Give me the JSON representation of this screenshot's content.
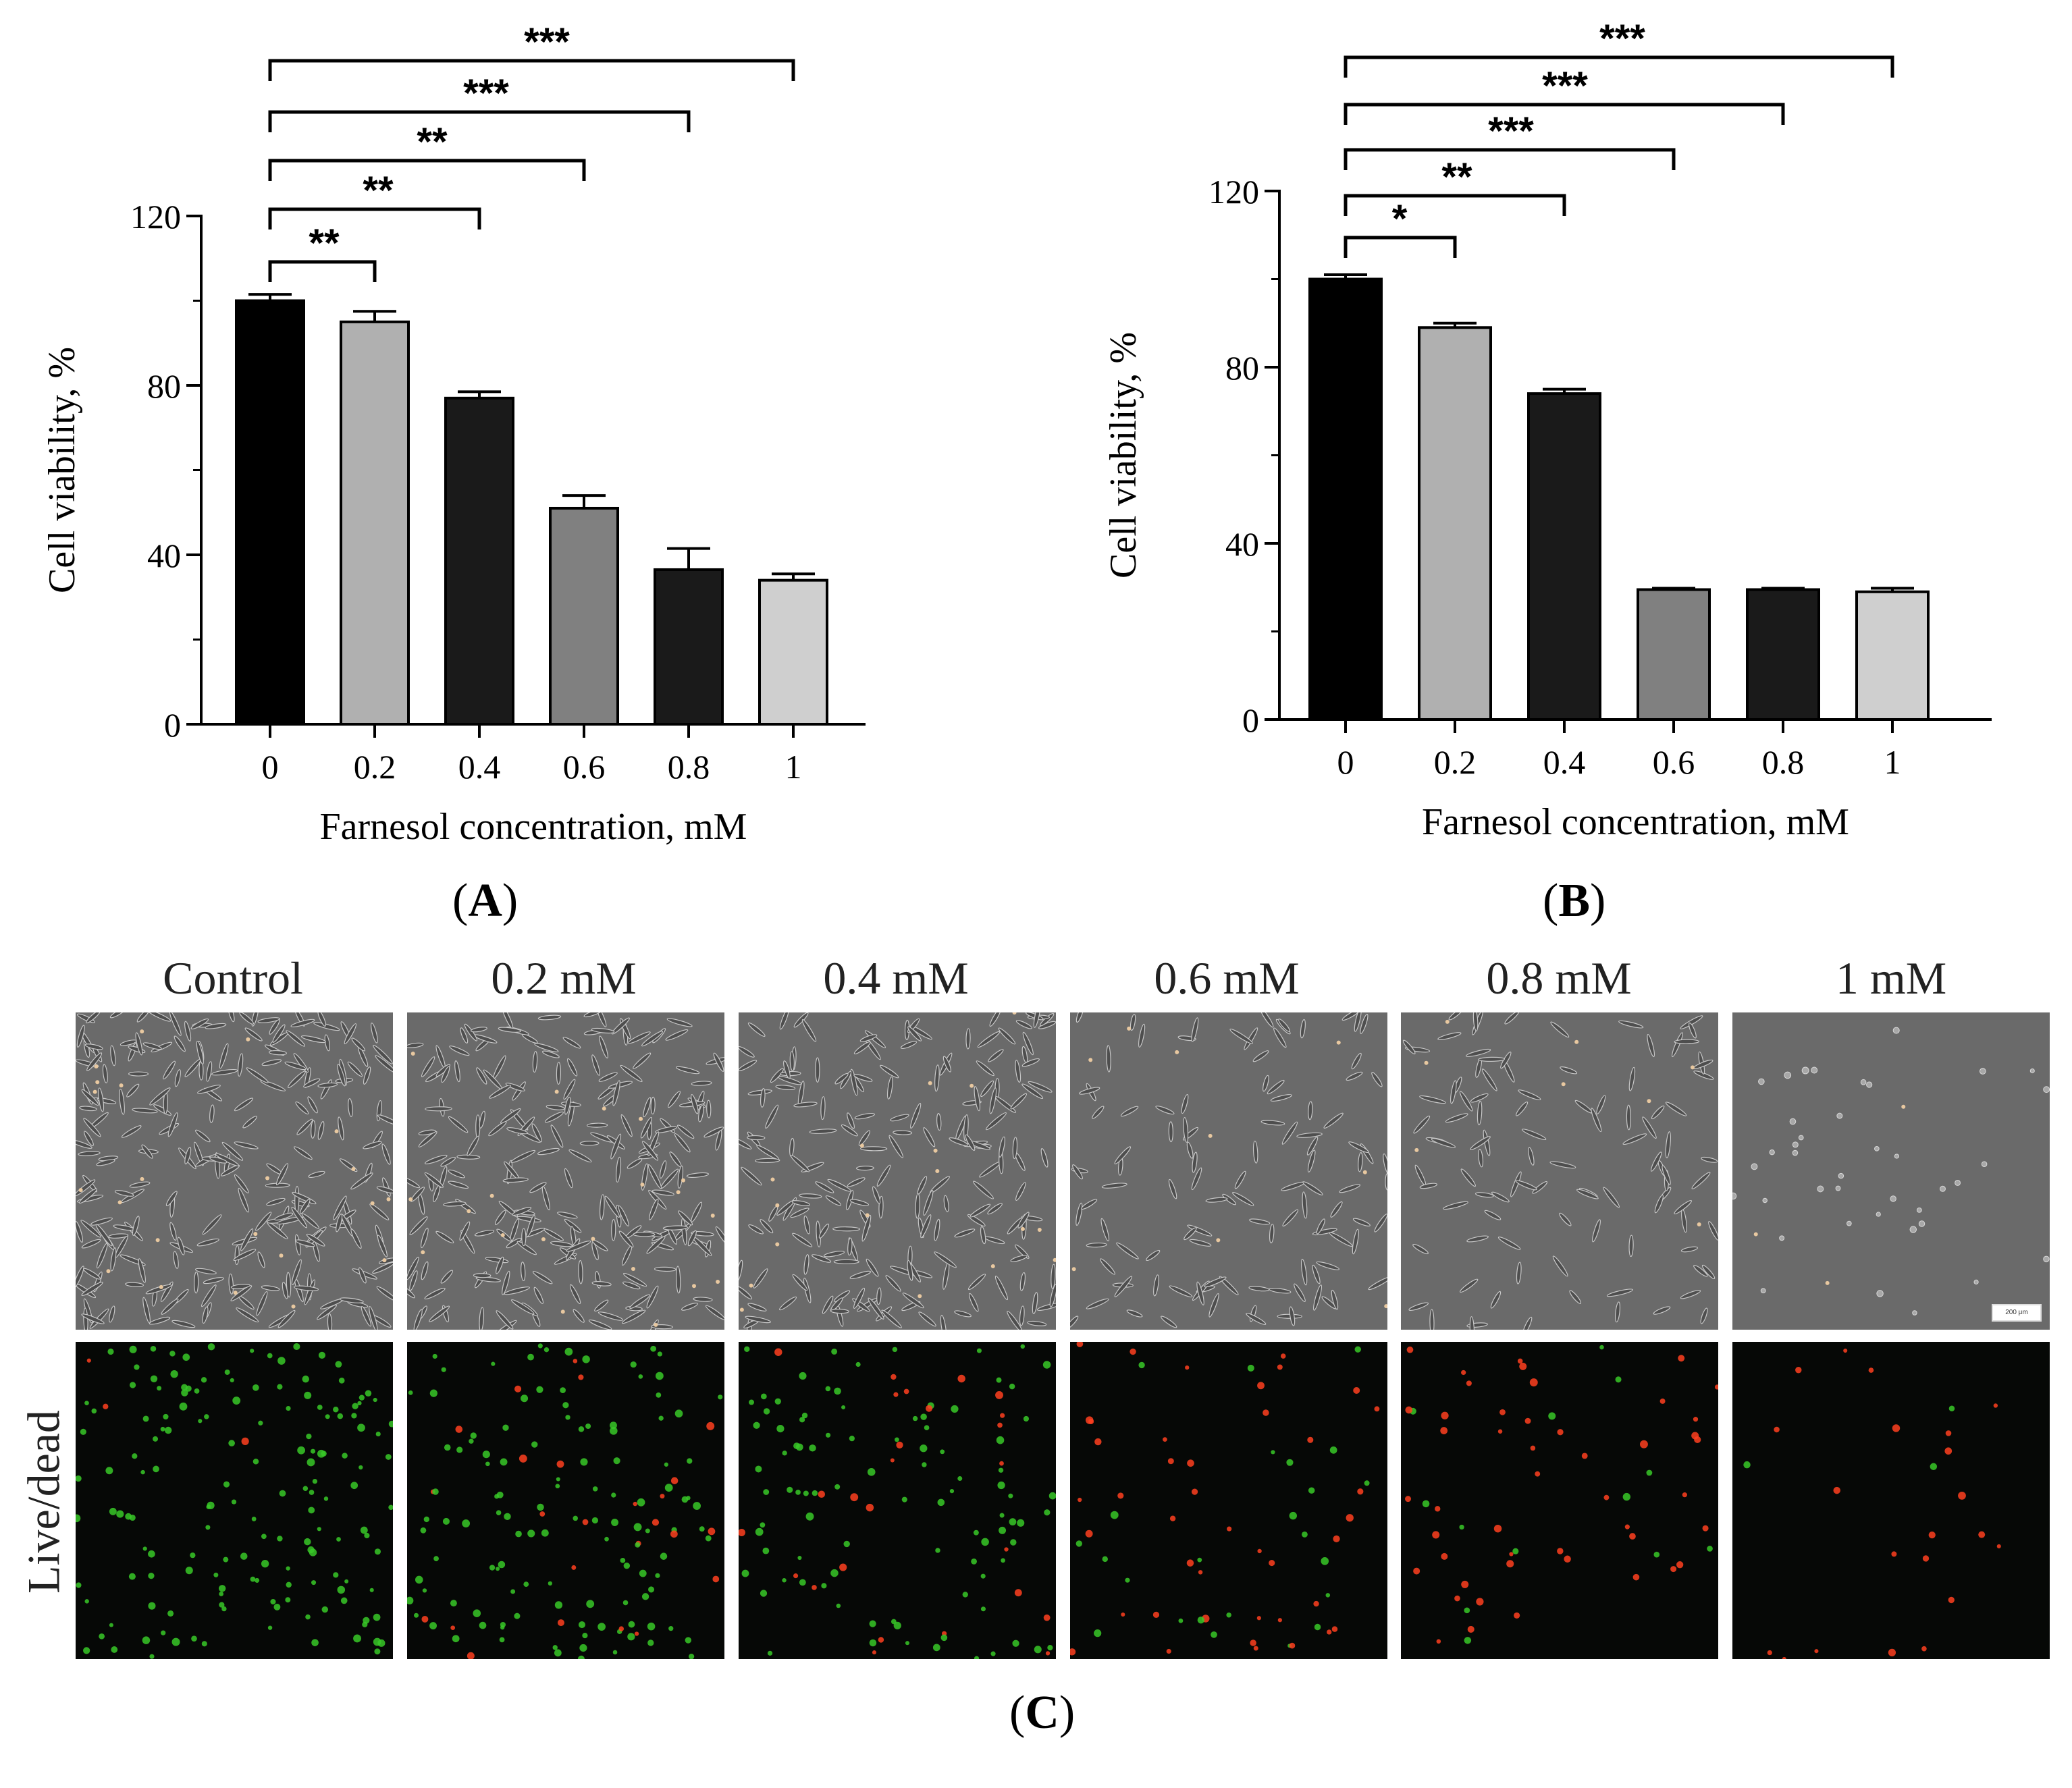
{
  "chart_data": [
    {
      "type": "bar",
      "panel": "A",
      "categories": [
        "0",
        "0.2",
        "0.4",
        "0.6",
        "0.8",
        "1"
      ],
      "values": [
        100,
        95,
        77,
        51,
        36.5,
        34
      ],
      "errors": [
        1.5,
        2.5,
        1.5,
        3,
        5,
        1.5
      ],
      "bar_colors": [
        "#000000",
        "#b0b0b0",
        "#1a1a1a",
        "#808080",
        "#1a1a1a",
        "#cfcfcf"
      ],
      "xlabel": "Farnesol concentration, mM",
      "ylabel": "Cell viability, %",
      "ylim": [
        0,
        120
      ],
      "yticks": [
        "0",
        "40",
        "80",
        "120"
      ],
      "significance": [
        {
          "to": "0.2",
          "label": "**"
        },
        {
          "to": "0.4",
          "label": "**"
        },
        {
          "to": "0.6",
          "label": "**"
        },
        {
          "to": "0.8",
          "label": "***"
        },
        {
          "to": "1",
          "label": "***"
        }
      ]
    },
    {
      "type": "bar",
      "panel": "B",
      "categories": [
        "0",
        "0.2",
        "0.4",
        "0.6",
        "0.8",
        "1"
      ],
      "values": [
        100,
        89,
        74,
        29.5,
        29.5,
        29
      ],
      "errors": [
        1,
        1,
        1,
        0.3,
        0.3,
        0.8
      ],
      "bar_colors": [
        "#000000",
        "#b0b0b0",
        "#1a1a1a",
        "#808080",
        "#1a1a1a",
        "#cfcfcf"
      ],
      "xlabel": "Farnesol concentration, mM",
      "ylabel": "Cell viability, %",
      "ylim": [
        0,
        120
      ],
      "yticks": [
        "0",
        "40",
        "80",
        "120"
      ],
      "significance": [
        {
          "to": "0.2",
          "label": "*"
        },
        {
          "to": "0.4",
          "label": "**"
        },
        {
          "to": "0.6",
          "label": "***"
        },
        {
          "to": "0.8",
          "label": "***"
        },
        {
          "to": "1",
          "label": "***"
        }
      ]
    }
  ],
  "panel_labels": {
    "a": "A",
    "b": "B",
    "c": "C"
  },
  "micrographs": {
    "columns": [
      "Control",
      "0.2 mM",
      "0.4 mM",
      "0.6 mM",
      "0.8 mM",
      "1 mM"
    ],
    "row_label": "Live/dead",
    "scale_bar": "200 μm"
  }
}
